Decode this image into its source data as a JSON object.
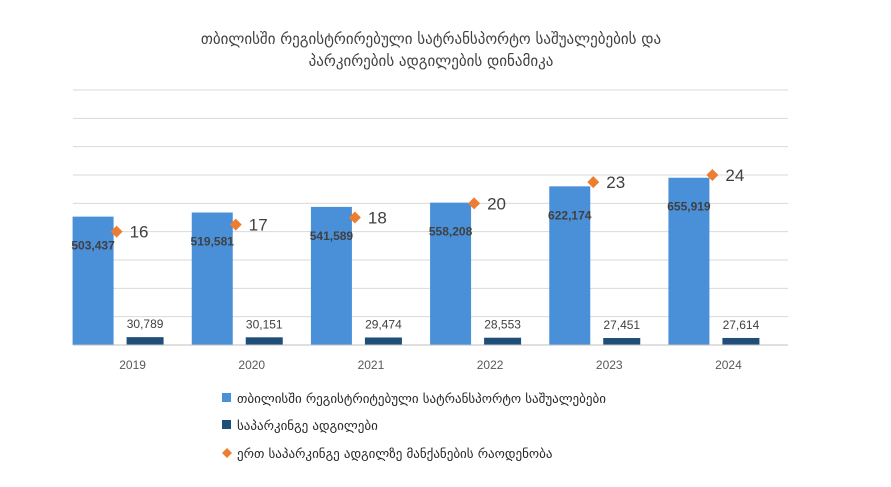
{
  "chart_data": {
    "type": "bar",
    "title": [
      "თბილისში რეგისტრირებული სატრანსპორტო საშუალებების და",
      "პარკირების ადგილების დინამიკა"
    ],
    "categories": [
      "2019",
      "2020",
      "2021",
      "2022",
      "2023",
      "2024"
    ],
    "series": [
      {
        "name": "თბილისში რეგისტრიტებული სატრანსპორტო საშუალებები",
        "kind": "bar",
        "color": "#4a90d9",
        "values": [
          503437,
          519581,
          541589,
          558208,
          622174,
          655919
        ],
        "labels": [
          "503,437",
          "519,581",
          "541,589",
          "558,208",
          "622,174",
          "655,919"
        ]
      },
      {
        "name": "საპარკინგე ადგილები",
        "kind": "bar",
        "color": "#1f4e79",
        "values": [
          30789,
          30151,
          29474,
          28553,
          27451,
          27614
        ],
        "labels": [
          "30,789",
          "30,151",
          "29,474",
          "28,553",
          "27,451",
          "27,614"
        ]
      },
      {
        "name": "ერთ საპარკინგე ადგილზე მანქანების რაოდენობა",
        "kind": "marker",
        "marker": "diamond",
        "color": "#ed7d31",
        "values": [
          16,
          17,
          18,
          20,
          23,
          24
        ],
        "labels": [
          "16",
          "17",
          "18",
          "20",
          "23",
          "24"
        ]
      }
    ],
    "ylim": [
      0,
      1000000
    ],
    "ylim_secondary": [
      0,
      36
    ],
    "grid": true,
    "legend_position": "bottom"
  }
}
